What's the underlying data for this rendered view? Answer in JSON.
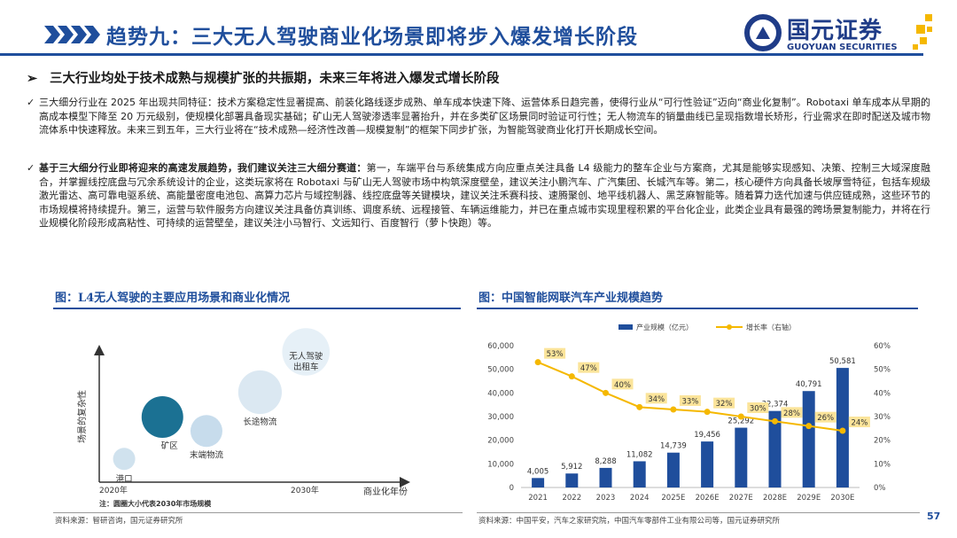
{
  "header": {
    "title": "趋势九：三大无人驾驶商业化场景即将步入爆发增长阶段",
    "logo_cn": "国元证券",
    "logo_en": "GUOYUAN SECURITIES"
  },
  "subheading": "三大行业均处于技术成熟与规模扩张的共振期，未来三年将进入爆发式增长阶段",
  "paragraphs": {
    "p1": "三大细分行业在 2025 年出现共同特征：技术方案稳定性显著提高、前装化路线逐步成熟、单车成本快速下降、运营体系日趋完善，使得行业从“可行性验证”迈向“商业化复制”。Robotaxi 单车成本从早期的高成本模型下降至 20 万元级别，使规模化部署具备现实基础；矿山无人驾驶渗透率显著抬升，并在多类矿区场景同时验证可行性；无人物流车的销量曲线已呈现指数增长矫形，行业需求在即时配送及城市物流体系中快速释放。未来三到五年，三大行业将在“技术成熟—经济性改善—规模复制”的框架下同步扩张，为智能驾驶商业化打开长期成长空间。",
    "p2_bold": "基于三大细分行业即将迎来的高速发展趋势，我们建议关注三大细分赛道：",
    "p2_rest": "第一，车端平台与系统集成方向应重点关注具备 L4 级能力的整车企业与方案商，尤其是能够实现感知、决策、控制三大域深度融合，并掌握线控底盘与冗余系统设计的企业，这类玩家将在 Robotaxi 与矿山无人驾驶市场中构筑深度壁垒，建议关注小鹏汽车、广汽集团、长城汽车等。第二，核心硬件方向具备长坡厚雪特征，包括车规级激光雷达、高可靠电驱系统、高能量密度电池包、高算力芯片与域控制器、线控底盘等关键模块，建议关注禾赛科技、速腾聚创、地平线机器人、黑芝麻智能等。随着算力迭代加速与供应链成熟，这些环节的市场规模将持续提升。第三，运营与软件服务方向建议关注具备仿真训练、调度系统、远程接管、车辆运维能力，并已在重点城市实现里程积累的平台化企业，此类企业具有最强的跨场景复制能力，并将在行业规模化阶段形成高粘性、可持续的运营壁垒，建议关注小马智行、文远知行、百度智行（萝卜快跑）等。"
  },
  "left_figure": {
    "title": "图：L4无人驾驶的主要应用场景和商业化情况",
    "y_axis_label": "场景的复杂性",
    "x_axis_label": "商业化年份",
    "x_start": "2020年",
    "x_mid": "2030年",
    "note": "注：圆圈大小代表2030年市场规模",
    "bubbles": [
      {
        "label": "港口",
        "year": 2021.3,
        "complexity": 1.5,
        "size": 1,
        "color": "#d0e2ee"
      },
      {
        "label": "矿区",
        "year": 2023.3,
        "complexity": 4.2,
        "size": 3,
        "color": "#1b7193"
      },
      {
        "label": "末端物流",
        "year": 2025.6,
        "complexity": 3.3,
        "size": 2,
        "color": "#c7dcec"
      },
      {
        "label": "长途物流",
        "year": 2028.4,
        "complexity": 5.8,
        "size": 3.2,
        "color": "#dbe8f2"
      },
      {
        "label": "无人驾驶出租车",
        "year": 2030.8,
        "complexity": 8.4,
        "size": 3.6,
        "color": "#e6f0f7"
      }
    ],
    "source": "资料来源：智研咨询，国元证券研究所"
  },
  "chart_data": {
    "type": "bar",
    "title": "图：中国智能网联汽车产业规模趋势",
    "categories": [
      "2021",
      "2022",
      "2023",
      "2024",
      "2025E",
      "2026E",
      "2027E",
      "2028E",
      "2029E",
      "2030E"
    ],
    "series": [
      {
        "name": "产业规模（亿元）",
        "type": "bar",
        "axis": "left",
        "color": "#1f4e9c",
        "values": [
          4005,
          5912,
          8288,
          11082,
          14739,
          19456,
          25292,
          32374,
          40791,
          50581
        ],
        "labels": [
          "4,005",
          "5,912",
          "8,288",
          "11,082",
          "14,739",
          "19,456",
          "25,292",
          "32,374",
          "40,791",
          "50,581"
        ]
      },
      {
        "name": "增长率（右轴）",
        "type": "line",
        "axis": "right",
        "color": "#f5b800",
        "values": [
          53,
          47,
          40,
          34,
          33,
          32,
          30,
          28,
          26,
          24
        ],
        "labels": [
          "53%",
          "47%",
          "40%",
          "34%",
          "33%",
          "32%",
          "30%",
          "28%",
          "26%",
          "24%"
        ]
      }
    ],
    "y_left": {
      "min": 0,
      "max": 60000,
      "ticks": [
        "0",
        "10,000",
        "20,000",
        "30,000",
        "40,000",
        "50,000",
        "60,000"
      ]
    },
    "y_right": {
      "min": 0,
      "max": 60,
      "ticks": [
        "0%",
        "10%",
        "20%",
        "30%",
        "40%",
        "50%",
        "60%"
      ]
    },
    "legend_position": "top",
    "source": "资料来源：中国平安，汽车之家研究院，中国汽车零部件工业有限公司等，国元证券研究所"
  },
  "page_number": "57"
}
